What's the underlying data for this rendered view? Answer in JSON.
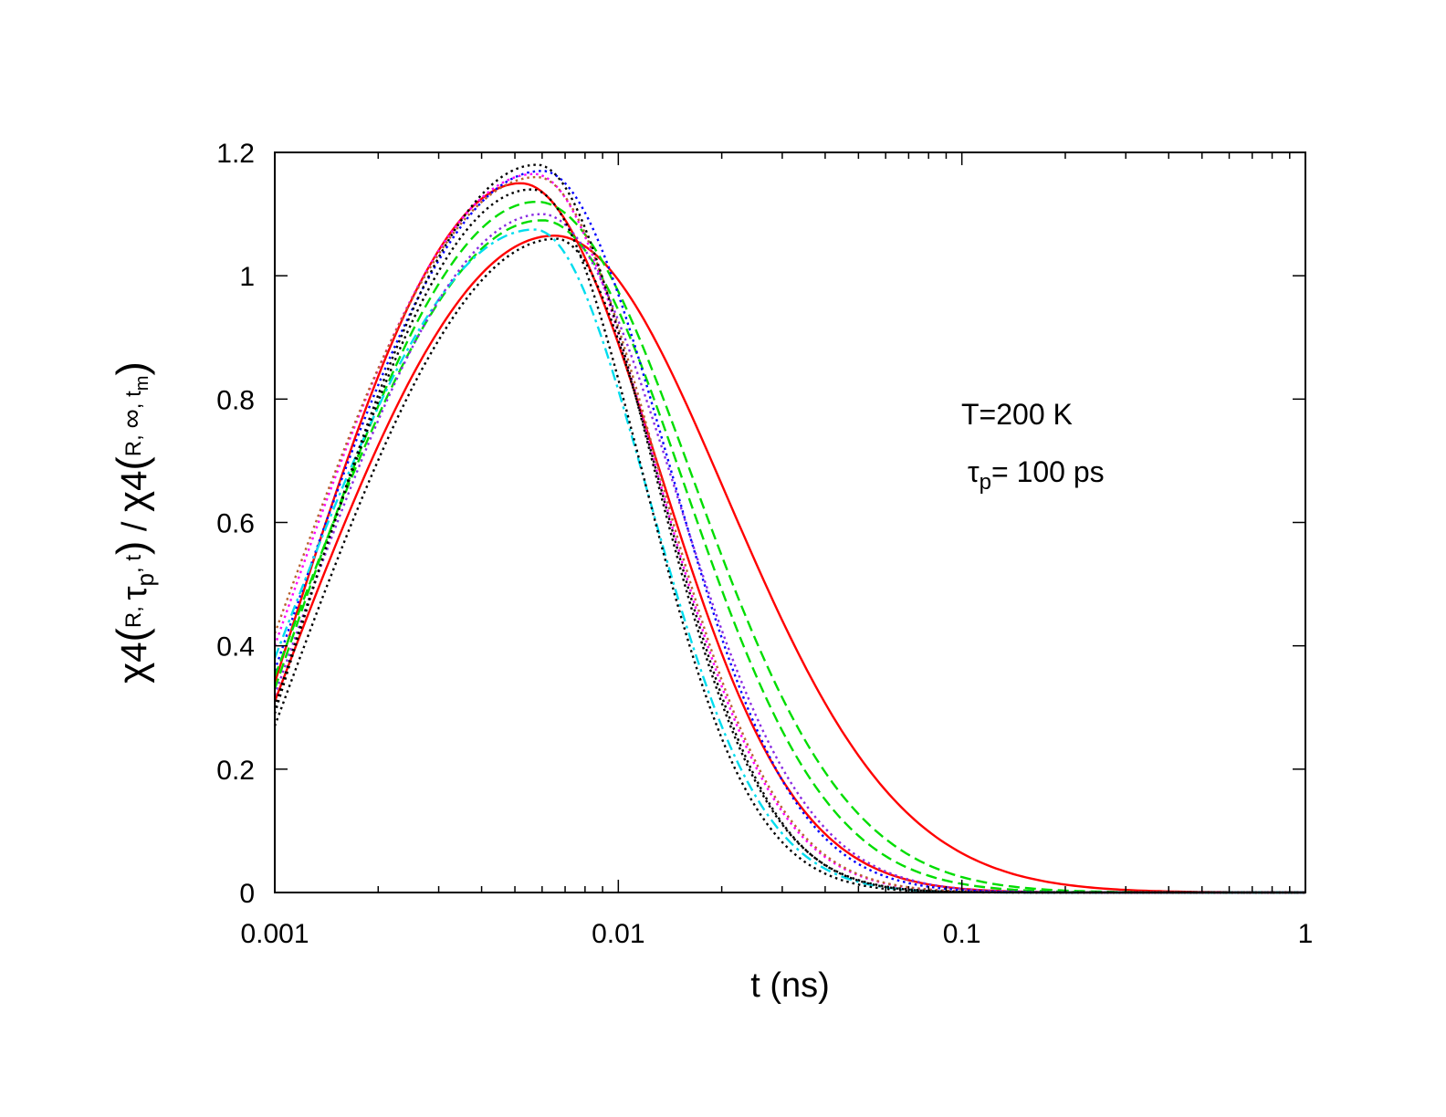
{
  "chart_data": {
    "type": "line",
    "xscale": "log",
    "xlim": [
      0.001,
      1
    ],
    "ylim": [
      0,
      1.2
    ],
    "xticks": [
      0.001,
      0.01,
      0.1,
      1
    ],
    "xtick_labels": [
      "0.001",
      "0.01",
      "0.1",
      "1"
    ],
    "yticks": [
      0,
      0.2,
      0.4,
      0.6,
      0.8,
      1,
      1.2
    ],
    "ytick_labels": [
      "0",
      "0.2",
      "0.4",
      "0.6",
      "0.8",
      "1",
      "1.2"
    ],
    "xlabel": "t (ns)",
    "ylabel": {
      "chi": "χ",
      "four": "4",
      "open": "(",
      "close": ")",
      "num_args": {
        "r": "R, ",
        "tau": "τ",
        "p": "p",
        "t": ", t"
      },
      "slash": " / ",
      "den_args": {
        "r": "R, ",
        "inf": "∞",
        "sep": ", t",
        "m": "m"
      }
    },
    "annotations": [
      {
        "text": "T=200 K"
      },
      {
        "tau": "τ",
        "sub": "p",
        "rest": "= 100 ps"
      }
    ],
    "grid": false,
    "legend": "none",
    "series": [
      {
        "name": "red-solid-a",
        "color": "#ff0000",
        "dash": "solid",
        "peak": 1.065,
        "tpeak": 0.0065,
        "y0": 0.31,
        "tail": 1.45
      },
      {
        "name": "red-solid-b",
        "color": "#ff0000",
        "dash": "solid",
        "peak": 1.15,
        "tpeak": 0.0052,
        "y0": 0.34,
        "tail": 1.15
      },
      {
        "name": "green-dashed-a",
        "color": "#00dd00",
        "dash": "dashed",
        "peak": 1.12,
        "tpeak": 0.0058,
        "y0": 0.33,
        "tail": 1.3
      },
      {
        "name": "green-dashed-b",
        "color": "#00dd00",
        "dash": "dashed",
        "peak": 1.09,
        "tpeak": 0.006,
        "y0": 0.35,
        "tail": 1.2
      },
      {
        "name": "blue-dotted",
        "color": "#0000ff",
        "dash": "dotted",
        "peak": 1.17,
        "tpeak": 0.006,
        "y0": 0.36,
        "tail": 1.05
      },
      {
        "name": "magenta-dotted",
        "color": "#ff00ff",
        "dash": "dotted",
        "peak": 1.165,
        "tpeak": 0.0057,
        "y0": 0.4,
        "tail": 1.0
      },
      {
        "name": "cyan-dashdot",
        "color": "#00ddee",
        "dash": "dashdot",
        "peak": 1.075,
        "tpeak": 0.0057,
        "y0": 0.38,
        "tail": 0.95
      },
      {
        "name": "brown-dotted",
        "color": "#b8622f",
        "dash": "dotted",
        "peak": 1.16,
        "tpeak": 0.0058,
        "y0": 0.42,
        "tail": 1.0
      },
      {
        "name": "purple-dotted",
        "color": "#8a2be2",
        "dash": "dotted",
        "peak": 1.1,
        "tpeak": 0.006,
        "y0": 0.32,
        "tail": 1.1
      },
      {
        "name": "black-dotted-a",
        "color": "#000000",
        "dash": "dotted",
        "peak": 1.18,
        "tpeak": 0.0058,
        "y0": 0.29,
        "tail": 0.95
      },
      {
        "name": "black-dotted-b",
        "color": "#000000",
        "dash": "dotted",
        "peak": 1.06,
        "tpeak": 0.0066,
        "y0": 0.27,
        "tail": 0.9
      },
      {
        "name": "black-dotted-c",
        "color": "#000000",
        "dash": "dotted",
        "peak": 1.14,
        "tpeak": 0.0056,
        "y0": 0.3,
        "tail": 0.92
      }
    ]
  }
}
